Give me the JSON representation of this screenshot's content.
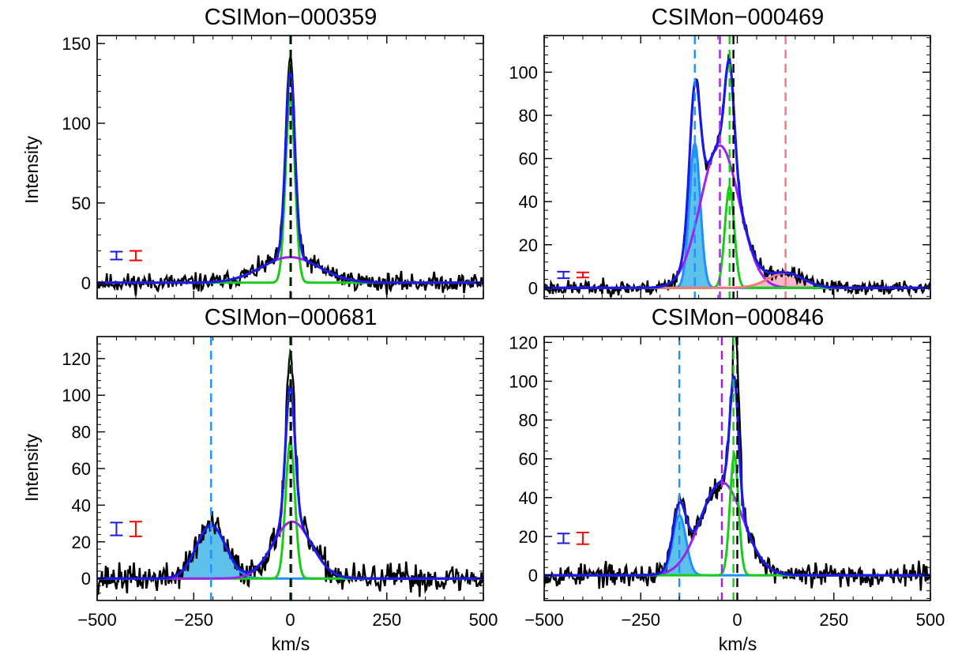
{
  "colors": {
    "observed": "#000000",
    "total_fit": "#1a1ae6",
    "narrow": "#19cc19",
    "broad": "#a020f0",
    "blue_wing": "#1e90ff",
    "blue_fill": "#5ec1eb",
    "red_wing": "#f07878",
    "red_fill": "#f7b6c8",
    "errbar_blue": "#1a1ae6",
    "errbar_red": "#ff0000"
  },
  "chart_data": [
    {
      "type": "line",
      "title": "CSIMon−000359",
      "xlabel": "",
      "ylabel": "Intensity",
      "xlim": [
        -500,
        500
      ],
      "ylim": [
        -10,
        155
      ],
      "xticks": [],
      "yticks": [
        0,
        50,
        100,
        150
      ],
      "ytick_labels": [
        "0",
        "50",
        "100",
        "150"
      ],
      "components": [
        {
          "name": "narrow",
          "center": 0,
          "amplitude": 117,
          "sigma": 12,
          "filled": false
        },
        {
          "name": "broad",
          "center": 0,
          "amplitude": 16,
          "sigma": 75,
          "filled": false
        }
      ],
      "peak_observed": 142,
      "vlines": [
        {
          "x": 0,
          "color": "narrow"
        },
        {
          "x": 2,
          "color": "broad"
        },
        {
          "x": 1,
          "color": "observed"
        }
      ],
      "errbars": [
        {
          "x": -450,
          "half_height": 2.5,
          "color": "errbar_blue"
        },
        {
          "x": -400,
          "half_height": 3,
          "color": "errbar_red"
        }
      ],
      "noise_seed": 11,
      "noise_amp": 4.5
    },
    {
      "type": "line",
      "title": "CSIMon−000469",
      "xlabel": "",
      "ylabel": "",
      "xlim": [
        -500,
        500
      ],
      "ylim": [
        -5,
        117
      ],
      "xticks": [],
      "yticks": [
        0,
        20,
        40,
        60,
        80,
        100
      ],
      "ytick_labels": [
        "0",
        "20",
        "40",
        "60",
        "80",
        "100"
      ],
      "components": [
        {
          "name": "blue_wing",
          "center": -110,
          "amplitude": 67,
          "sigma": 14,
          "filled": true
        },
        {
          "name": "broad",
          "center": -45,
          "amplitude": 66,
          "sigma": 50,
          "filled": false
        },
        {
          "name": "narrow",
          "center": -20,
          "amplitude": 47,
          "sigma": 12,
          "filled": false
        },
        {
          "name": "red_wing",
          "center": 125,
          "amplitude": 7,
          "sigma": 45,
          "filled": true
        }
      ],
      "peak_observed": 110,
      "vlines": [
        {
          "x": -110,
          "color": "blue_wing"
        },
        {
          "x": -45,
          "color": "broad"
        },
        {
          "x": -20,
          "color": "narrow"
        },
        {
          "x": -10,
          "color": "observed"
        },
        {
          "x": 125,
          "color": "red_wing"
        }
      ],
      "errbars": [
        {
          "x": -450,
          "half_height": 1.5,
          "color": "errbar_blue"
        },
        {
          "x": -400,
          "half_height": 1.2,
          "color": "errbar_red"
        }
      ],
      "noise_seed": 23,
      "noise_amp": 2.6
    },
    {
      "type": "line",
      "title": "CSIMon−000681",
      "xlabel": "",
      "ylabel": "Intensity",
      "xlim": [
        -500,
        500
      ],
      "ylim": [
        -12,
        132
      ],
      "xticks": [
        -500,
        -250,
        0,
        250,
        500
      ],
      "xtick_labels": [
        "−500",
        "−250",
        "0",
        "250",
        "500"
      ],
      "yticks": [
        0,
        20,
        40,
        60,
        80,
        100,
        120
      ],
      "ytick_labels": [
        "0",
        "20",
        "40",
        "60",
        "80",
        "100",
        "120"
      ],
      "components": [
        {
          "name": "blue_wing",
          "center": -205,
          "amplitude": 29,
          "sigma": 38,
          "filled": true
        },
        {
          "name": "narrow",
          "center": 0,
          "amplitude": 75,
          "sigma": 12,
          "filled": false
        },
        {
          "name": "broad",
          "center": 5,
          "amplitude": 31,
          "sigma": 50,
          "filled": false
        }
      ],
      "peak_observed": 122,
      "vlines": [
        {
          "x": -205,
          "color": "blue_wing"
        },
        {
          "x": 0,
          "color": "narrow"
        },
        {
          "x": 3,
          "color": "broad"
        },
        {
          "x": 1,
          "color": "observed"
        }
      ],
      "errbars": [
        {
          "x": -450,
          "half_height": 3.5,
          "color": "errbar_blue"
        },
        {
          "x": -400,
          "half_height": 4,
          "color": "errbar_red"
        }
      ],
      "noise_seed": 37,
      "noise_amp": 6
    },
    {
      "type": "line",
      "title": "CSIMon−000846",
      "xlabel": "km/s",
      "ylabel": "",
      "xlim": [
        -500,
        500
      ],
      "ylim": [
        -13,
        123
      ],
      "xticks": [
        -500,
        -250,
        0,
        250,
        500
      ],
      "xtick_labels": [
        "−500",
        "−250",
        "0",
        "250",
        "500"
      ],
      "yticks": [
        0,
        20,
        40,
        60,
        80,
        100,
        120
      ],
      "ytick_labels": [
        "0",
        "20",
        "40",
        "60",
        "80",
        "100",
        "120"
      ],
      "components": [
        {
          "name": "blue_wing",
          "center": -150,
          "amplitude": 31,
          "sigma": 17,
          "filled": true
        },
        {
          "name": "broad",
          "center": -40,
          "amplitude": 48,
          "sigma": 55,
          "filled": false
        },
        {
          "name": "narrow",
          "center": -8,
          "amplitude": 62,
          "sigma": 11,
          "filled": false
        }
      ],
      "peak_observed": 112,
      "vlines": [
        {
          "x": -150,
          "color": "blue_wing"
        },
        {
          "x": -40,
          "color": "broad"
        },
        {
          "x": -10,
          "color": "narrow"
        },
        {
          "x": 0,
          "color": "observed"
        }
      ],
      "errbars": [
        {
          "x": -450,
          "half_height": 2.5,
          "color": "errbar_blue"
        },
        {
          "x": -400,
          "half_height": 3,
          "color": "errbar_red"
        }
      ],
      "noise_seed": 53,
      "noise_amp": 4.5
    }
  ],
  "shared_xlabel": "km/s"
}
